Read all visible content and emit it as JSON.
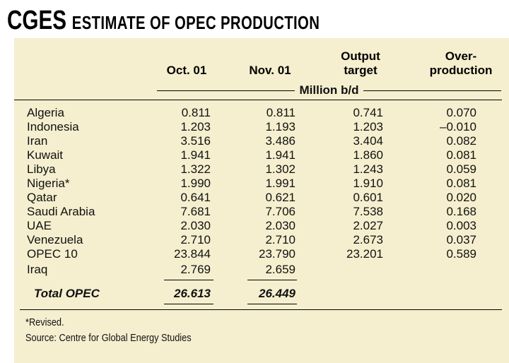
{
  "title": {
    "brand": "CGES",
    "text": "ESTIMATE OF OPEC PRODUCTION"
  },
  "columns": {
    "oct": "Oct. 01",
    "nov": "Nov. 01",
    "target_1": "Output",
    "target_2": "target",
    "over_1": "Over-",
    "over_2": "production",
    "unit": "Million b/d"
  },
  "rows": [
    {
      "name": "Algeria",
      "oct": "0.811",
      "nov": "0.811",
      "target": "0.741",
      "over": "0.070"
    },
    {
      "name": "Indonesia",
      "oct": "1.203",
      "nov": "1.193",
      "target": "1.203",
      "over": "–0.010"
    },
    {
      "name": "Iran",
      "oct": "3.516",
      "nov": "3.486",
      "target": "3.404",
      "over": "0.082"
    },
    {
      "name": "Kuwait",
      "oct": "1.941",
      "nov": "1.941",
      "target": "1.860",
      "over": "0.081"
    },
    {
      "name": "Libya",
      "oct": "1.322",
      "nov": "1.302",
      "target": "1.243",
      "over": "0.059"
    },
    {
      "name": "Nigeria*",
      "oct": "1.990",
      "nov": "1.991",
      "target": "1.910",
      "over": "0.081"
    },
    {
      "name": "Qatar",
      "oct": "0.641",
      "nov": "0.621",
      "target": "0.601",
      "over": "0.020"
    },
    {
      "name": "Saudi Arabia",
      "oct": "7.681",
      "nov": "7.706",
      "target": "7.538",
      "over": "0.168"
    },
    {
      "name": "UAE",
      "oct": "2.030",
      "nov": "2.030",
      "target": "2.027",
      "over": "0.003"
    },
    {
      "name": "Venezuela",
      "oct": "2.710",
      "nov": "2.710",
      "target": "2.673",
      "over": "0.037"
    },
    {
      "name": "OPEC 10",
      "oct": "23.844",
      "nov": "23.790",
      "target": "23.201",
      "over": "0.589"
    },
    {
      "name": "Iraq",
      "oct": "2.769",
      "nov": "2.659",
      "target": "",
      "over": ""
    }
  ],
  "total": {
    "name": "Total OPEC",
    "oct": "26.613",
    "nov": "26.449"
  },
  "notes": {
    "revised": "*Revised.",
    "source": "Source: Centre for Global Energy Studies"
  }
}
